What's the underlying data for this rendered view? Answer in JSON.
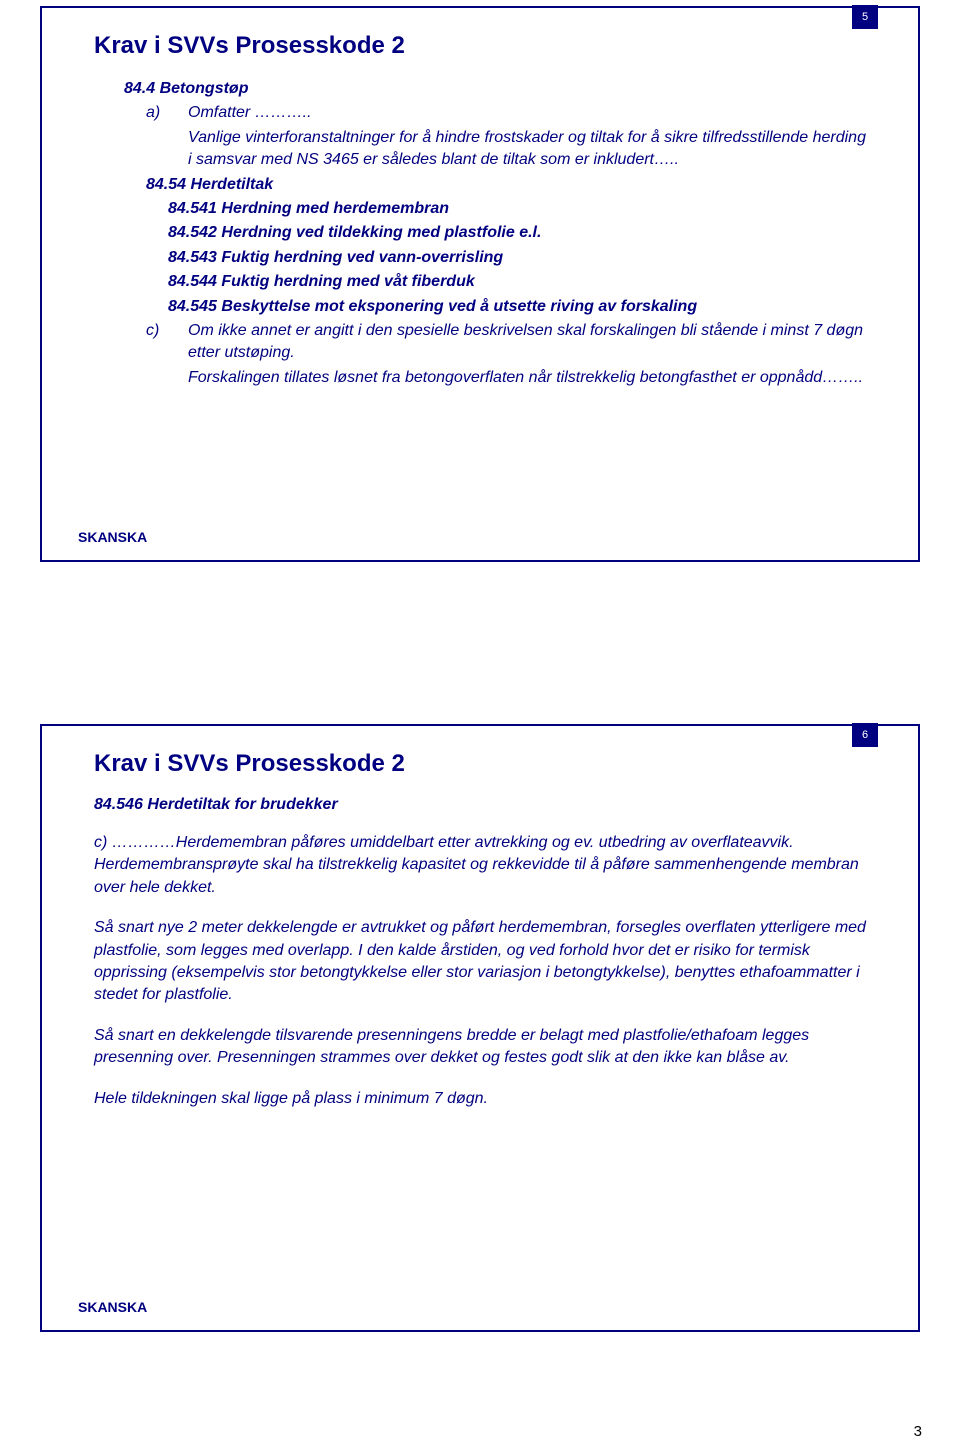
{
  "slide1": {
    "page_num": "5",
    "title": "Krav i SVVs Prosesskode 2",
    "s84_4_heading": "84.4 Betongstøp",
    "a_marker": "a)",
    "a_text": "Omfatter ………..",
    "a_para": "Vanlige vinterforanstaltninger for å hindre frostskader og tiltak for å sikre tilfredsstillende herding i samsvar med NS 3465 er således blant de tiltak som er inkludert…..",
    "s84_54_heading": "84.54 Herdetiltak",
    "s84_541": "84.541 Herdning med herdemembran",
    "s84_542": "84.542 Herdning ved tildekking med plastfolie e.l.",
    "s84_543": "84.543 Fuktig herdning ved vann-overrisling",
    "s84_544": "84.544 Fuktig herdning med våt fiberduk",
    "s84_545": "84.545 Beskyttelse mot eksponering ved å utsette riving av forskaling",
    "c_marker": "c)",
    "c_text": "Om ikke annet er angitt i den spesielle beskrivelsen skal forskalingen bli stående i minst 7 døgn etter utstøping.",
    "c_para": "Forskalingen tillates løsnet fra betongoverflaten når tilstrekkelig betongfasthet er oppnådd…….."
  },
  "slide2": {
    "page_num": "6",
    "title": "Krav i SVVs Prosesskode 2",
    "subtitle": "84.546 Herdetiltak for brudekker",
    "p1": "c) …………Herdemembran påføres umiddelbart etter avtrekking og ev. utbedring av overflateavvik. Herdemembransprøyte skal ha tilstrekkelig kapasitet og rekkevidde til å påføre sammenhengende membran over hele dekket.",
    "p2": "Så snart nye 2 meter dekkelengde er avtrukket og påført herdemembran, forsegles overflaten ytterligere med plastfolie, som legges med overlapp. I den kalde årstiden, og ved forhold hvor det er risiko for termisk opprissing (eksempelvis stor betongtykkelse eller stor variasjon i betongtykkelse), benyttes ethafoammatter i stedet for plastfolie.",
    "p3": "Så snart en dekkelengde tilsvarende presenningens bredde er belagt med plastfolie/ethafoam legges presenning over. Presenningen strammes over dekket og festes godt slik at den ikke kan blåse av.",
    "p4": "Hele tildekningen skal ligge på plass i minimum 7 døgn."
  },
  "outer_page_num": "3",
  "logo_text": "SKANSKA"
}
